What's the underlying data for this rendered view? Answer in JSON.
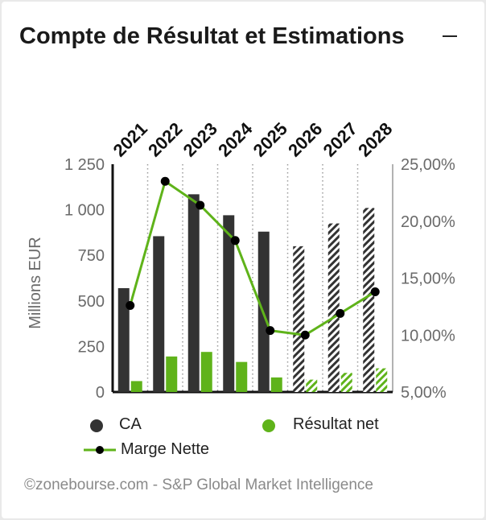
{
  "card": {
    "title": "Compte de Résultat et Estimations",
    "footer": "©zonebourse.com - S&P Global Market Intelligence"
  },
  "chart_data": {
    "type": "bar",
    "categories": [
      "2021",
      "2022",
      "2023",
      "2024",
      "2025",
      "2026",
      "2027",
      "2028"
    ],
    "estimated_from": "2026",
    "ylabel": "Millions EUR",
    "ylim": [
      0,
      1250
    ],
    "y_ticks": [
      "0",
      "250",
      "500",
      "750",
      "1 000",
      "1 250"
    ],
    "y2lim": [
      5,
      25
    ],
    "y2_ticks": [
      "5,00%",
      "10,00%",
      "15,00%",
      "20,00%",
      "25,00%"
    ],
    "series": [
      {
        "name": "CA",
        "type": "bar",
        "color": "#333333",
        "values": [
          570,
          855,
          1085,
          970,
          880,
          800,
          925,
          1010
        ]
      },
      {
        "name": "Résultat net",
        "type": "bar",
        "color": "#5fb31a",
        "values": [
          60,
          195,
          220,
          165,
          80,
          68,
          105,
          130
        ]
      },
      {
        "name": "Marge Nette",
        "type": "line",
        "axis": "right",
        "color": "#5fb31a",
        "values": [
          12.6,
          23.5,
          21.4,
          18.3,
          10.4,
          10.0,
          11.9,
          13.8
        ]
      }
    ],
    "grid": false,
    "legend_position": "bottom"
  }
}
